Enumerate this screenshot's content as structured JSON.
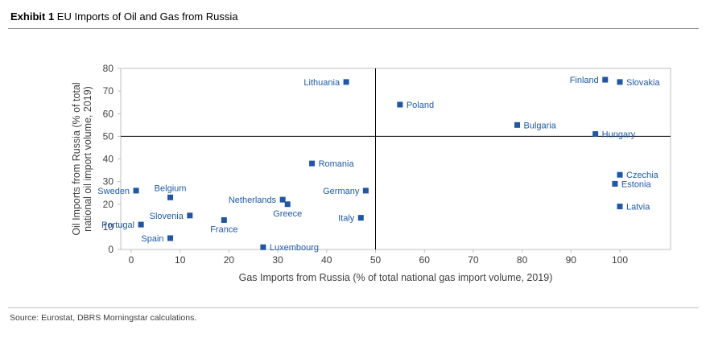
{
  "header": {
    "exhibit_label": "Exhibit 1",
    "title": " EU Imports of Oil and Gas from Russia"
  },
  "footer": {
    "source": "Source: Eurostat, DBRS Morningstar calculations."
  },
  "colors": {
    "marker": "#2056A4",
    "point_label": "#1F5AA8",
    "axis_line": "#BFBFBF",
    "reference_line": "#000000",
    "axis_text": "#404040"
  },
  "chart_data": {
    "type": "scatter",
    "title": "EU Imports of Oil and Gas from Russia",
    "xlabel": "Gas Imports from Russia (% of total national gas import volume, 2019)",
    "ylabel_lines": [
      "Oil Imports from Russia (% of total",
      "national oil import volume, 2019)"
    ],
    "xlim": [
      0,
      100
    ],
    "ylim": [
      0,
      80
    ],
    "xticks": [
      0,
      10,
      20,
      30,
      40,
      50,
      60,
      70,
      80,
      90,
      100
    ],
    "yticks": [
      0,
      10,
      20,
      30,
      40,
      50,
      60,
      70,
      80
    ],
    "grid": false,
    "legend": "none",
    "reference_lines": {
      "x": 50,
      "y": 50
    },
    "points": [
      {
        "label": "Sweden",
        "gas": 1,
        "oil": 26,
        "label_pos": "left"
      },
      {
        "label": "Portugal",
        "gas": 2,
        "oil": 11,
        "label_pos": "left"
      },
      {
        "label": "Belgium",
        "gas": 8,
        "oil": 23,
        "label_pos": "above"
      },
      {
        "label": "Spain",
        "gas": 8,
        "oil": 5,
        "label_pos": "left"
      },
      {
        "label": "Slovenia",
        "gas": 12,
        "oil": 15,
        "label_pos": "left"
      },
      {
        "label": "France",
        "gas": 19,
        "oil": 13,
        "label_pos": "below"
      },
      {
        "label": "Netherlands",
        "gas": 31,
        "oil": 22,
        "label_pos": "left"
      },
      {
        "label": "Greece",
        "gas": 32,
        "oil": 20,
        "label_pos": "below"
      },
      {
        "label": "Luxembourg",
        "gas": 27,
        "oil": 1,
        "label_pos": "right"
      },
      {
        "label": "Romania",
        "gas": 37,
        "oil": 38,
        "label_pos": "right"
      },
      {
        "label": "Lithuania",
        "gas": 44,
        "oil": 74,
        "label_pos": "left"
      },
      {
        "label": "Germany",
        "gas": 48,
        "oil": 26,
        "label_pos": "left"
      },
      {
        "label": "Italy",
        "gas": 47,
        "oil": 14,
        "label_pos": "left"
      },
      {
        "label": "Poland",
        "gas": 55,
        "oil": 64,
        "label_pos": "right"
      },
      {
        "label": "Bulgaria",
        "gas": 79,
        "oil": 55,
        "label_pos": "right"
      },
      {
        "label": "Hungary",
        "gas": 95,
        "oil": 51,
        "label_pos": "right"
      },
      {
        "label": "Finland",
        "gas": 97,
        "oil": 75,
        "label_pos": "left"
      },
      {
        "label": "Slovakia",
        "gas": 100,
        "oil": 74,
        "label_pos": "right"
      },
      {
        "label": "Czechia",
        "gas": 100,
        "oil": 33,
        "label_pos": "right"
      },
      {
        "label": "Estonia",
        "gas": 99,
        "oil": 29,
        "label_pos": "right"
      },
      {
        "label": "Latvia",
        "gas": 100,
        "oil": 19,
        "label_pos": "right"
      }
    ]
  }
}
